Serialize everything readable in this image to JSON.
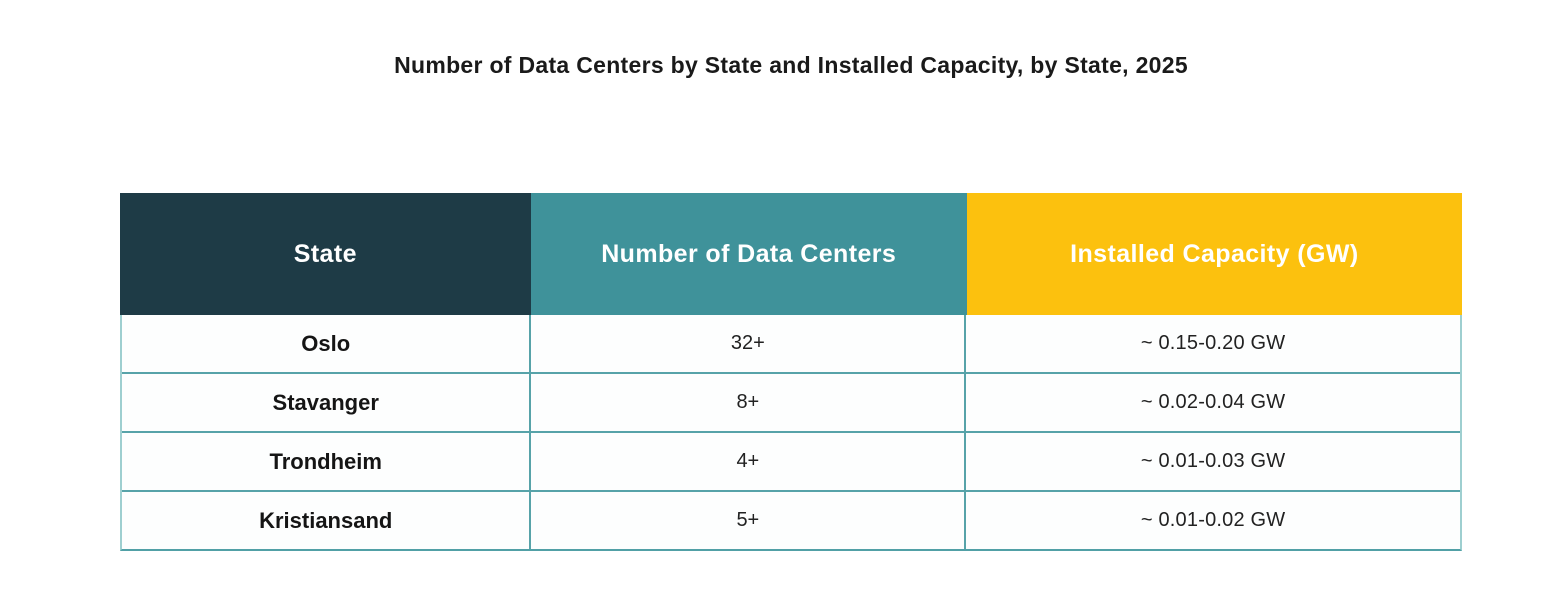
{
  "title": "Number of Data Centers by State and Installed Capacity, by State, 2025",
  "chart_data": {
    "type": "table",
    "title": "Number of Data Centers by State and Installed Capacity, by State, 2025",
    "columns": [
      "State",
      "Number of Data Centers",
      "Installed Capacity (GW)"
    ],
    "rows": [
      {
        "state": "Oslo",
        "count": "32+",
        "capacity": "~ 0.15-0.20 GW"
      },
      {
        "state": "Stavanger",
        "count": "8+",
        "capacity": "~ 0.02-0.04 GW"
      },
      {
        "state": "Trondheim",
        "count": "4+",
        "capacity": "~ 0.01-0.03 GW"
      },
      {
        "state": "Kristiansand",
        "count": "5+",
        "capacity": "~ 0.01-0.02 GW"
      }
    ]
  },
  "colors": {
    "header_state_bg": "#1e3b46",
    "header_count_bg": "#3f929a",
    "header_capacity_bg": "#fcc10e",
    "header_text": "#ffffff",
    "grid_line": "#57a3a9",
    "title_text": "#1a1a1a",
    "body_text": "#222222"
  }
}
